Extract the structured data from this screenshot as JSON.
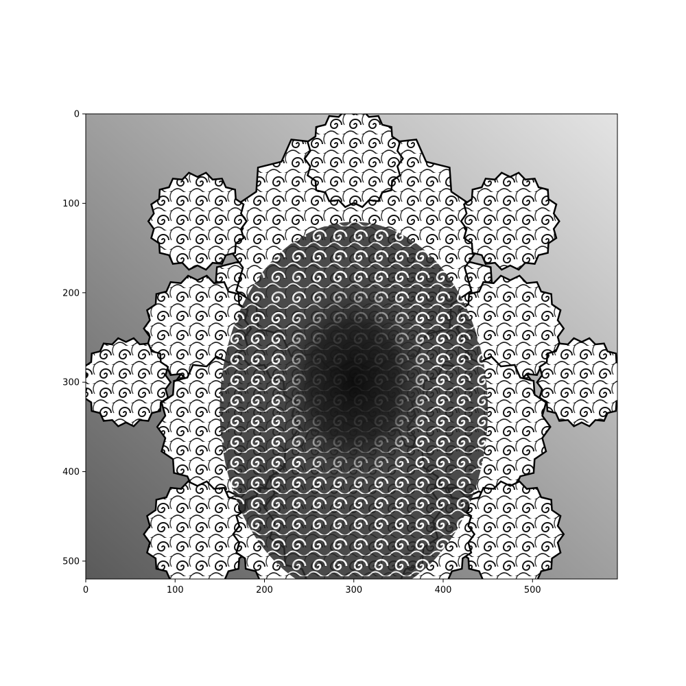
{
  "chart_data": {
    "type": "heatmap",
    "image_kind": "grayscale fractal image (imshow)",
    "colormap": "gray",
    "title": "",
    "xlabel": "",
    "ylabel": "",
    "xlim": [
      0,
      595
    ],
    "ylim": [
      520,
      0
    ],
    "x_ticks": [
      0,
      100,
      200,
      300,
      400,
      500
    ],
    "y_ticks": [
      0,
      100,
      200,
      300,
      400,
      500
    ],
    "x_tick_labels": [
      "0",
      "100",
      "200",
      "300",
      "400",
      "500"
    ],
    "y_tick_labels": [
      "0",
      "100",
      "200",
      "300",
      "400",
      "500"
    ],
    "grid": false,
    "legend": "none",
    "background_gradient": {
      "light_corner": "top-right",
      "dark_corner": "bottom-left",
      "light_color": "#e4e4e4",
      "dark_color": "#5a5a5a"
    },
    "fractal": {
      "shape": "cross-shaped tiling with scalloped, star-tipped edges",
      "fill_color": "#ffffff",
      "edge_color": "#000000",
      "dark_core_center": [
        300,
        300
      ],
      "dark_core_color": "#0a0a0a",
      "bright_swirl_region": "upper half and right side"
    }
  }
}
